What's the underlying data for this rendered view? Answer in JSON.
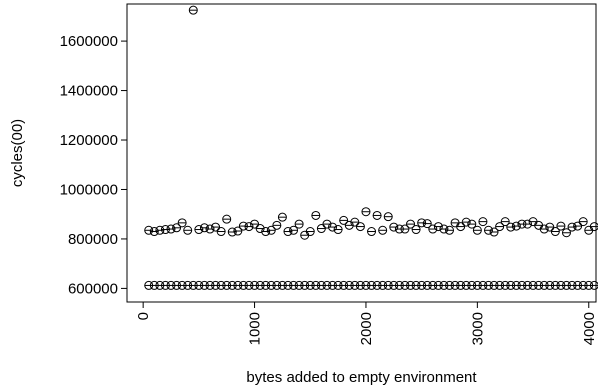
{
  "chart_data": {
    "type": "scatter",
    "title": "",
    "xlabel": "bytes added to empty environment",
    "ylabel": "cycles(00)",
    "xlim": [
      -145,
      4065
    ],
    "ylim": [
      545000,
      1750000
    ],
    "x_ticks": [
      0,
      1000,
      2000,
      3000,
      4000
    ],
    "x_tick_labels": [
      "0",
      "1000",
      "2000",
      "3000",
      "4000"
    ],
    "y_ticks": [
      600000,
      800000,
      1000000,
      1200000,
      1400000,
      1600000
    ],
    "y_tick_labels": [
      "600000",
      "800000",
      "1000000",
      "1200000",
      "1400000",
      "1600000"
    ],
    "grid": false,
    "marker": "open circle with horizontal bar",
    "series": [
      {
        "x": [
          50,
          100,
          150,
          200,
          250,
          300,
          350,
          400,
          450,
          500,
          550,
          600,
          650,
          700,
          750,
          800,
          850,
          900,
          950,
          1000,
          1050,
          1100,
          1150,
          1200,
          1250,
          1300,
          1350,
          1400,
          1450,
          1500,
          1550,
          1600,
          1650,
          1700,
          1750,
          1800,
          1850,
          1900,
          1950,
          2000,
          2050,
          2100,
          2150,
          2200,
          2250,
          2300,
          2350,
          2400,
          2450,
          2500,
          2550,
          2600,
          2650,
          2700,
          2750,
          2800,
          2850,
          2900,
          2950,
          3000,
          3050,
          3100,
          3150,
          3200,
          3250,
          3300,
          3350,
          3400,
          3450,
          3500,
          3550,
          3600,
          3650,
          3700,
          3750,
          3800,
          3850,
          3900,
          3950,
          4000,
          4050
        ],
        "values": [
          612000,
          612000,
          612000,
          612000,
          612000,
          612000,
          612000,
          612000,
          612000,
          612000,
          612000,
          612000,
          612000,
          612000,
          612000,
          612000,
          612000,
          612000,
          612000,
          612000,
          612000,
          612000,
          612000,
          612000,
          612000,
          612000,
          612000,
          612000,
          612000,
          612000,
          612000,
          612000,
          612000,
          612000,
          612000,
          612000,
          612000,
          612000,
          612000,
          612000,
          612000,
          612000,
          612000,
          612000,
          612000,
          612000,
          612000,
          612000,
          612000,
          612000,
          612000,
          612000,
          612000,
          612000,
          612000,
          612000,
          612000,
          612000,
          612000,
          612000,
          612000,
          612000,
          612000,
          612000,
          612000,
          612000,
          612000,
          612000,
          612000,
          612000,
          612000,
          612000,
          612000,
          612000,
          612000,
          612000,
          612000,
          612000,
          612000,
          612000,
          612000
        ]
      },
      {
        "x": [
          50,
          100,
          150,
          200,
          250,
          300,
          350,
          400,
          450,
          500,
          550,
          600,
          650,
          700,
          750,
          800,
          850,
          900,
          950,
          1000,
          1050,
          1100,
          1150,
          1200,
          1250,
          1300,
          1350,
          1400,
          1450,
          1500,
          1550,
          1600,
          1650,
          1700,
          1750,
          1800,
          1850,
          1900,
          1950,
          2000,
          2050,
          2100,
          2150,
          2200,
          2250,
          2300,
          2350,
          2400,
          2450,
          2500,
          2550,
          2600,
          2650,
          2700,
          2750,
          2800,
          2850,
          2900,
          2950,
          3000,
          3050,
          3100,
          3150,
          3200,
          3250,
          3300,
          3350,
          3400,
          3450,
          3500,
          3550,
          3600,
          3650,
          3700,
          3750,
          3800,
          3850,
          3900,
          3950,
          4000,
          4050
        ],
        "values": [
          835000,
          830000,
          835000,
          838000,
          840000,
          845000,
          865000,
          835000,
          1725000,
          838000,
          845000,
          840000,
          848000,
          830000,
          880000,
          828000,
          832000,
          852000,
          850000,
          860000,
          842000,
          830000,
          835000,
          855000,
          888000,
          830000,
          835000,
          860000,
          815000,
          830000,
          895000,
          842000,
          860000,
          848000,
          838000,
          875000,
          855000,
          868000,
          850000,
          910000,
          830000,
          895000,
          835000,
          890000,
          848000,
          840000,
          840000,
          860000,
          838000,
          865000,
          862000,
          840000,
          850000,
          840000,
          835000,
          865000,
          850000,
          868000,
          860000,
          835000,
          870000,
          835000,
          828000,
          850000,
          870000,
          848000,
          852000,
          860000,
          860000,
          870000,
          855000,
          840000,
          848000,
          830000,
          852000,
          825000,
          848000,
          852000,
          870000,
          835000,
          850000
        ]
      }
    ]
  }
}
